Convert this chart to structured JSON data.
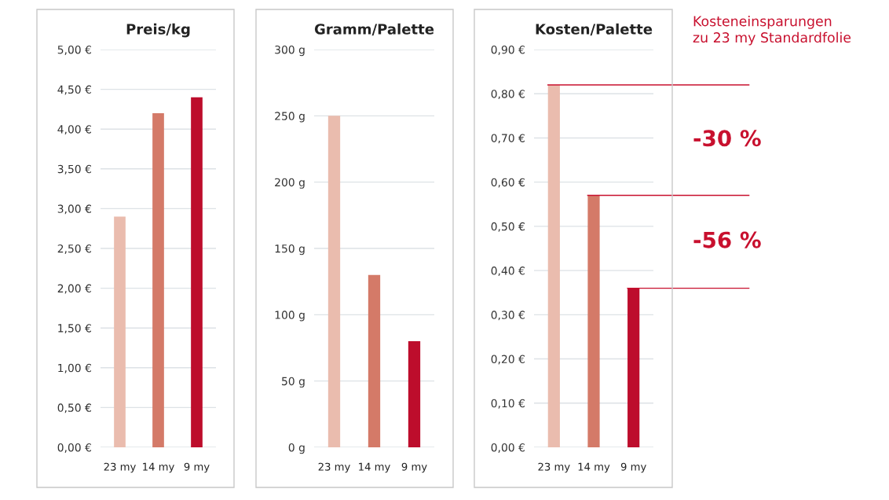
{
  "chart_data": [
    {
      "type": "bar",
      "title": "Preis/kg",
      "categories": [
        "23 my",
        "14 my",
        "9 my"
      ],
      "values": [
        2.9,
        4.2,
        4.4
      ],
      "colors": [
        "#eabcae",
        "#d47a68",
        "#bd0d2c"
      ],
      "ylim": [
        0,
        5
      ],
      "yticks": [
        {
          "value": 0,
          "label": "0,00 €"
        },
        {
          "value": 0.5,
          "label": "0,50 €"
        },
        {
          "value": 1,
          "label": "1,00 €"
        },
        {
          "value": 1.5,
          "label": "1,50 €"
        },
        {
          "value": 2,
          "label": "2,00 €"
        },
        {
          "value": 2.5,
          "label": "2,50 €"
        },
        {
          "value": 3,
          "label": "3,00 €"
        },
        {
          "value": 3.5,
          "label": "3,50 €"
        },
        {
          "value": 4,
          "label": "4,00 €"
        },
        {
          "value": 4.5,
          "label": "4,50 €"
        },
        {
          "value": 5,
          "label": "5,00 €"
        }
      ],
      "grid": "y"
    },
    {
      "type": "bar",
      "title": "Gramm/Palette",
      "categories": [
        "23 my",
        "14 my",
        "9 my"
      ],
      "values": [
        250,
        130,
        80
      ],
      "colors": [
        "#eabcae",
        "#d47a68",
        "#bd0d2c"
      ],
      "ylim": [
        0,
        300
      ],
      "yticks": [
        {
          "value": 0,
          "label": "0 g"
        },
        {
          "value": 50,
          "label": "50 g"
        },
        {
          "value": 100,
          "label": "100 g"
        },
        {
          "value": 150,
          "label": "150 g"
        },
        {
          "value": 200,
          "label": "200 g"
        },
        {
          "value": 250,
          "label": "250 g"
        },
        {
          "value": 300,
          "label": "300 g"
        }
      ],
      "grid": "y"
    },
    {
      "type": "bar",
      "title": "Kosten/Palette",
      "categories": [
        "23 my",
        "14 my",
        "9 my"
      ],
      "values": [
        0.82,
        0.57,
        0.36
      ],
      "colors": [
        "#eabcae",
        "#d47a68",
        "#bd0d2c"
      ],
      "ylim": [
        0,
        0.9
      ],
      "yticks": [
        {
          "value": 0,
          "label": "0,00 €"
        },
        {
          "value": 0.1,
          "label": "0,10 €"
        },
        {
          "value": 0.2,
          "label": "0,20 €"
        },
        {
          "value": 0.3,
          "label": "0,30 €"
        },
        {
          "value": 0.4,
          "label": "0,40 €"
        },
        {
          "value": 0.5,
          "label": "0,50 €"
        },
        {
          "value": 0.6,
          "label": "0,60 €"
        },
        {
          "value": 0.7,
          "label": "0,70 €"
        },
        {
          "value": 0.8,
          "label": "0,80 €"
        },
        {
          "value": 0.9,
          "label": "0,90 €"
        }
      ],
      "grid": "y",
      "ref_lines": [
        {
          "axis": "y",
          "value": 0.82,
          "color": "#c8102e"
        },
        {
          "axis": "y",
          "value": 0.57,
          "color": "#c8102e"
        },
        {
          "axis": "y",
          "value": 0.36,
          "color": "#c8102e"
        }
      ],
      "annotations": [
        "Kosteneinsparungen\nzu 23 my Standardfolie",
        "-30 %",
        "-56 %"
      ]
    }
  ]
}
